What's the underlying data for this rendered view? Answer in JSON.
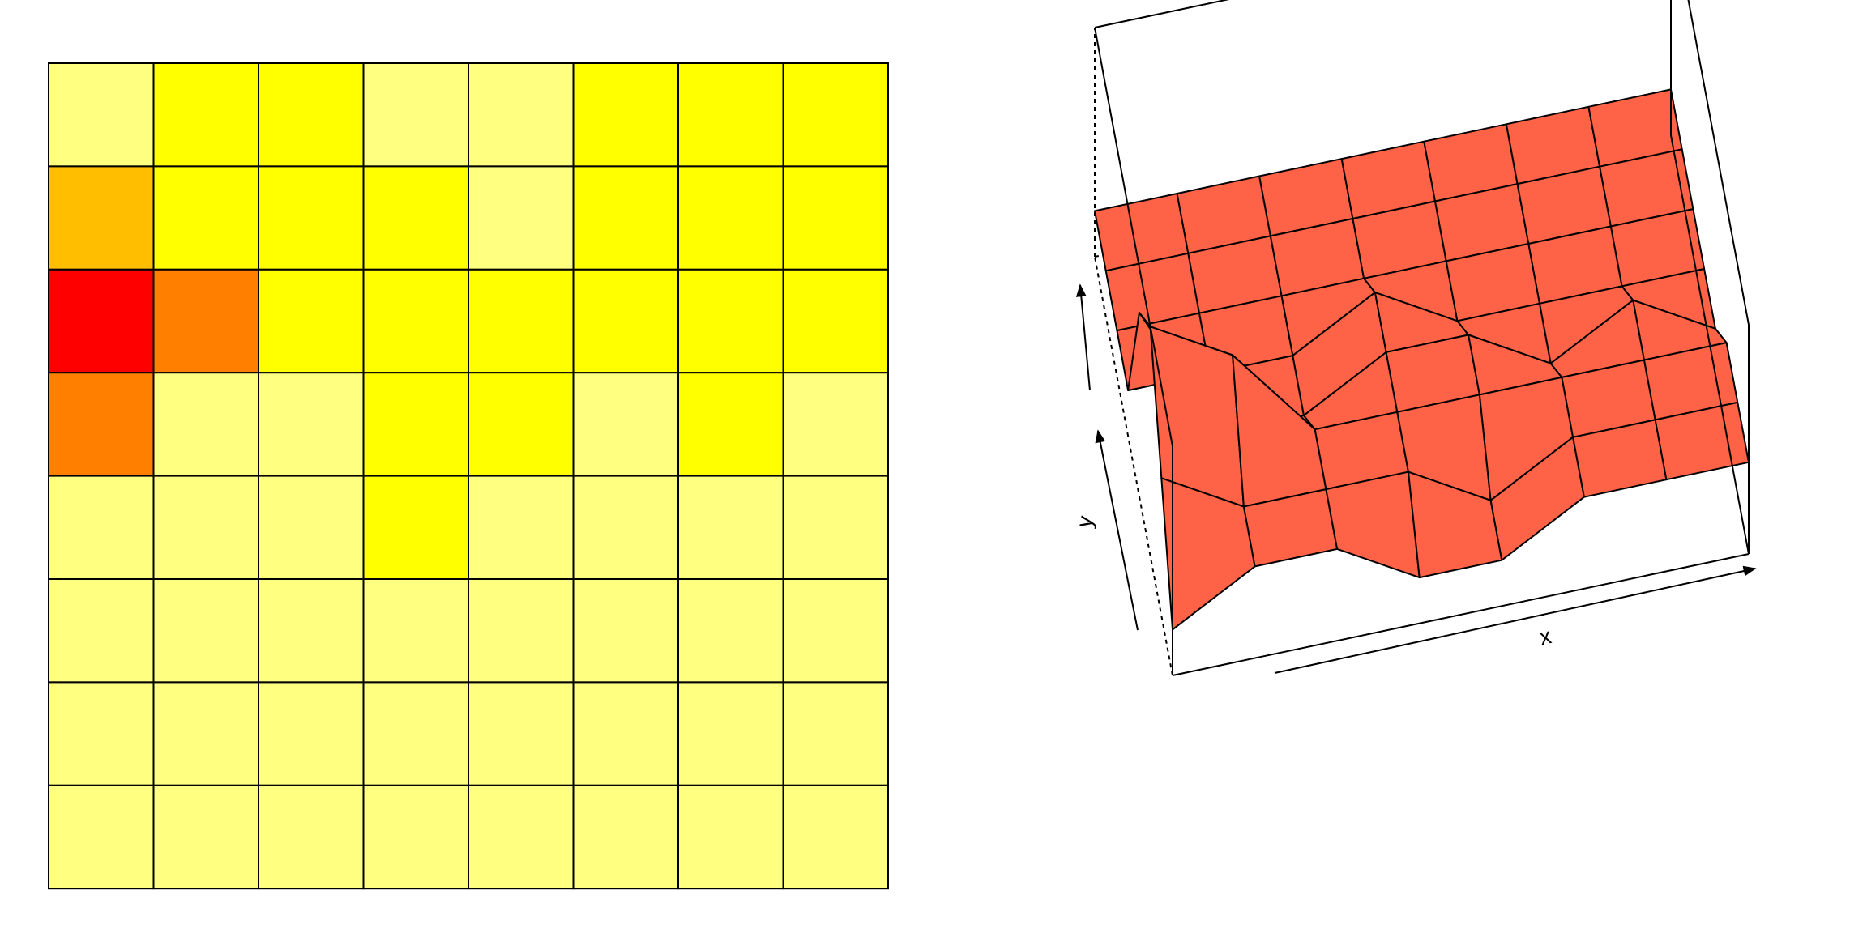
{
  "chart_data": [
    {
      "type": "heatmap",
      "title": "",
      "xlabel": "",
      "ylabel": "",
      "rows": 8,
      "cols": 8,
      "values": [
        [
          1,
          2,
          2,
          1,
          1,
          2,
          2,
          2
        ],
        [
          3,
          2,
          2,
          2,
          1,
          2,
          2,
          2
        ],
        [
          5,
          4,
          2,
          2,
          2,
          2,
          2,
          2
        ],
        [
          4,
          1,
          1,
          2,
          2,
          1,
          2,
          1
        ],
        [
          1,
          1,
          1,
          2,
          1,
          1,
          1,
          1
        ],
        [
          1,
          1,
          1,
          1,
          1,
          1,
          1,
          1
        ],
        [
          1,
          1,
          1,
          1,
          1,
          1,
          1,
          1
        ],
        [
          1,
          1,
          1,
          1,
          1,
          1,
          1,
          1
        ]
      ],
      "colors": {
        "1": "#FFFF80",
        "2": "#FFFF00",
        "3": "#FFBF00",
        "4": "#FF8000",
        "5": "#FF0000"
      },
      "grid": true
    },
    {
      "type": "surface",
      "xlabel": "x",
      "ylabel": "y",
      "zlabel": "",
      "surface_color": "#FF6347",
      "ylim": [
        0,
        5
      ],
      "z": [
        [
          1,
          2,
          2,
          1,
          1,
          2,
          2,
          2
        ],
        [
          3,
          2,
          2,
          2,
          1,
          2,
          2,
          2
        ],
        [
          5,
          4,
          2,
          2,
          2,
          2,
          2,
          2
        ],
        [
          4,
          1,
          1,
          2,
          2,
          1,
          2,
          1
        ],
        [
          1,
          1,
          1,
          2,
          1,
          1,
          1,
          1
        ],
        [
          1,
          1,
          1,
          1,
          1,
          1,
          1,
          1
        ],
        [
          1,
          1,
          1,
          1,
          1,
          1,
          1,
          1
        ],
        [
          1,
          1,
          1,
          1,
          1,
          1,
          1,
          1
        ]
      ]
    }
  ]
}
